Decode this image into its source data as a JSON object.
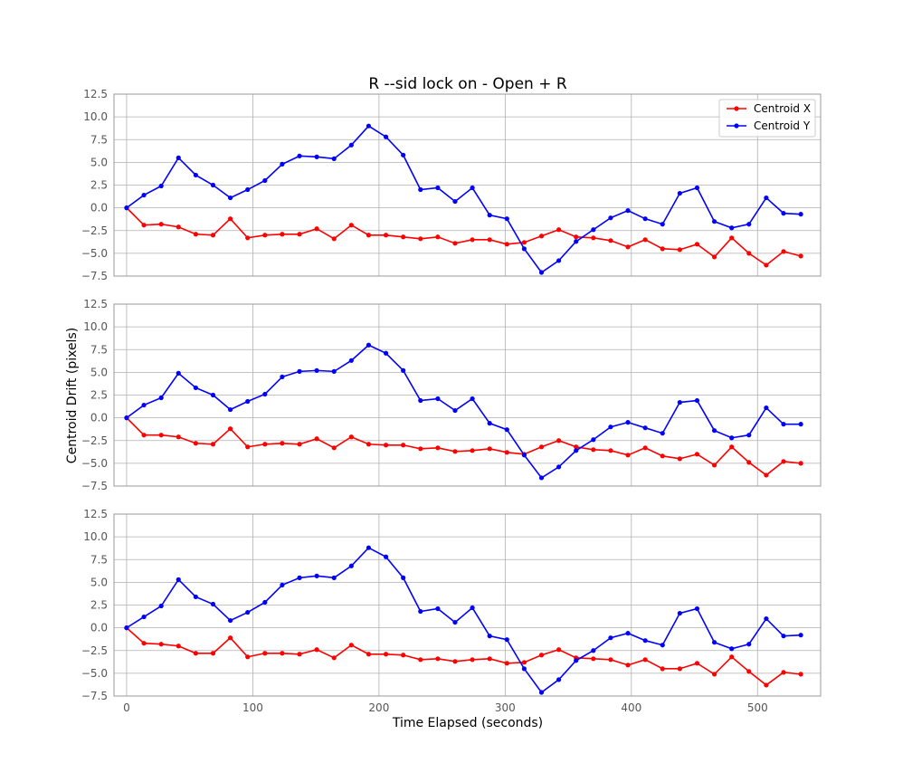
{
  "chart_data": {
    "type": "line",
    "title": "R --sid lock on - Open + R",
    "xlabel": "Time Elapsed (seconds)",
    "ylabel": "Centroid Drift (pixels)",
    "xlim": [
      -10,
      550
    ],
    "ylim": [
      -7.5,
      12.5
    ],
    "xticks": [
      0,
      100,
      200,
      300,
      400,
      500
    ],
    "xtick_labels": [
      "0",
      "100",
      "200",
      "300",
      "400",
      "500"
    ],
    "yticks": [
      -7.5,
      -5.0,
      -2.5,
      0.0,
      2.5,
      5.0,
      7.5,
      10.0,
      12.5
    ],
    "ytick_labels": [
      "−7.5",
      "−5.0",
      "−2.5",
      "0.0",
      "2.5",
      "5.0",
      "7.5",
      "10.0",
      "12.5"
    ],
    "grid": true,
    "legend": {
      "placement": "top-right",
      "entries": [
        "Centroid X",
        "Centroid Y"
      ]
    },
    "x": [
      0,
      13.7,
      27.4,
      41.1,
      54.8,
      68.5,
      82.2,
      95.9,
      109.6,
      123.3,
      137.0,
      150.7,
      164.4,
      178.1,
      191.8,
      205.5,
      219.2,
      232.9,
      246.6,
      260.3,
      274.0,
      287.7,
      301.4,
      315.1,
      328.8,
      342.5,
      356.2,
      369.9,
      383.6,
      397.3,
      411.0,
      424.7,
      438.4,
      452.1,
      465.8,
      479.5,
      493.2,
      506.9,
      520.6,
      534.3
    ],
    "panels": [
      {
        "series": [
          {
            "name": "Centroid X",
            "color": "#ff0000",
            "values": [
              0,
              -1.9,
              -1.8,
              -2.1,
              -2.9,
              -3.0,
              -1.2,
              -3.3,
              -3.0,
              -2.9,
              -2.9,
              -2.3,
              -3.4,
              -1.9,
              -3.0,
              -3.0,
              -3.2,
              -3.4,
              -3.2,
              -3.9,
              -3.5,
              -3.5,
              -4.0,
              -3.8,
              -3.1,
              -2.4,
              -3.2,
              -3.3,
              -3.6,
              -4.3,
              -3.5,
              -4.5,
              -4.6,
              -4.0,
              -5.4,
              -3.3,
              -5.0,
              -6.3,
              -4.8,
              -5.3
            ]
          },
          {
            "name": "Centroid Y",
            "color": "#0000ff",
            "values": [
              0,
              1.4,
              2.4,
              5.5,
              3.6,
              2.5,
              1.1,
              2.0,
              3.0,
              4.8,
              5.7,
              5.6,
              5.4,
              6.9,
              9.0,
              7.8,
              5.8,
              2.0,
              2.2,
              0.7,
              2.2,
              -0.8,
              -1.2,
              -4.5,
              -7.1,
              -5.8,
              -3.7,
              -2.4,
              -1.1,
              -0.3,
              -1.2,
              -1.8,
              1.6,
              2.2,
              -1.5,
              -2.2,
              -1.8,
              1.1,
              -0.6,
              -0.7
            ]
          }
        ]
      },
      {
        "series": [
          {
            "name": "Centroid X",
            "color": "#ff0000",
            "values": [
              0,
              -1.9,
              -1.9,
              -2.1,
              -2.8,
              -2.9,
              -1.2,
              -3.2,
              -2.9,
              -2.8,
              -2.9,
              -2.3,
              -3.3,
              -2.1,
              -2.9,
              -3.0,
              -3.0,
              -3.4,
              -3.3,
              -3.7,
              -3.6,
              -3.4,
              -3.8,
              -4.0,
              -3.2,
              -2.5,
              -3.2,
              -3.5,
              -3.6,
              -4.1,
              -3.3,
              -4.2,
              -4.5,
              -4.0,
              -5.2,
              -3.2,
              -4.9,
              -6.3,
              -4.8,
              -5.0
            ]
          },
          {
            "name": "Centroid Y",
            "color": "#0000ff",
            "values": [
              0,
              1.4,
              2.2,
              4.9,
              3.3,
              2.5,
              0.9,
              1.8,
              2.6,
              4.5,
              5.1,
              5.2,
              5.1,
              6.3,
              8.0,
              7.1,
              5.2,
              1.9,
              2.1,
              0.8,
              2.1,
              -0.6,
              -1.3,
              -4.1,
              -6.6,
              -5.4,
              -3.6,
              -2.4,
              -1.0,
              -0.5,
              -1.1,
              -1.7,
              1.7,
              1.9,
              -1.4,
              -2.2,
              -1.9,
              1.1,
              -0.7,
              -0.7
            ]
          }
        ]
      },
      {
        "series": [
          {
            "name": "Centroid X",
            "color": "#ff0000",
            "values": [
              0,
              -1.7,
              -1.8,
              -2.0,
              -2.8,
              -2.8,
              -1.1,
              -3.2,
              -2.8,
              -2.8,
              -2.9,
              -2.4,
              -3.3,
              -1.9,
              -2.9,
              -2.9,
              -3.0,
              -3.5,
              -3.4,
              -3.7,
              -3.5,
              -3.4,
              -3.9,
              -3.8,
              -3.0,
              -2.4,
              -3.3,
              -3.4,
              -3.5,
              -4.1,
              -3.5,
              -4.5,
              -4.5,
              -3.9,
              -5.1,
              -3.2,
              -4.8,
              -6.3,
              -4.9,
              -5.1
            ]
          },
          {
            "name": "Centroid Y",
            "color": "#0000ff",
            "values": [
              0,
              1.2,
              2.4,
              5.3,
              3.4,
              2.6,
              0.8,
              1.7,
              2.8,
              4.7,
              5.5,
              5.7,
              5.5,
              6.8,
              8.8,
              7.8,
              5.5,
              1.8,
              2.1,
              0.6,
              2.2,
              -0.9,
              -1.3,
              -4.5,
              -7.1,
              -5.7,
              -3.6,
              -2.5,
              -1.1,
              -0.6,
              -1.4,
              -1.9,
              1.6,
              2.1,
              -1.6,
              -2.3,
              -1.8,
              1.0,
              -0.9,
              -0.8
            ]
          }
        ]
      }
    ]
  }
}
